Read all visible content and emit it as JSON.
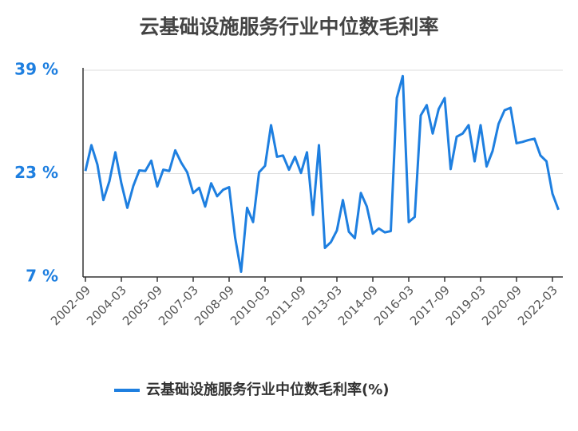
{
  "chart_data": {
    "type": "line",
    "title": "云基础设施服务行业中位数毛利率",
    "categories": [
      "2002-09",
      null,
      null,
      null,
      null,
      null,
      "2004-03",
      null,
      null,
      null,
      null,
      null,
      "2005-09",
      null,
      null,
      null,
      null,
      null,
      "2007-03",
      null,
      null,
      null,
      null,
      null,
      "2008-09",
      null,
      null,
      null,
      null,
      null,
      "2010-03",
      null,
      null,
      null,
      null,
      null,
      "2011-09",
      null,
      null,
      null,
      null,
      null,
      "2013-03",
      null,
      null,
      null,
      null,
      null,
      "2014-09",
      null,
      null,
      null,
      null,
      null,
      "2016-03",
      null,
      null,
      null,
      null,
      null,
      "2017-09",
      null,
      null,
      null,
      null,
      null,
      "2019-03",
      null,
      null,
      null,
      null,
      null,
      "2020-09",
      null,
      null,
      null,
      null,
      null,
      "2022-03",
      null
    ],
    "series": [
      {
        "name": "云基础设施服务行业中位数毛利率(%)",
        "color": "#1e7fe0",
        "values": [
          23.4,
          27.4,
          24.4,
          18.9,
          21.8,
          26.3,
          21.5,
          17.7,
          21.1,
          23.5,
          23.4,
          25.0,
          21.0,
          23.6,
          23.4,
          26.6,
          24.7,
          23.2,
          20.0,
          20.8,
          17.9,
          21.5,
          19.5,
          20.5,
          20.9,
          13.1,
          7.8,
          17.7,
          15.5,
          23.2,
          24.2,
          30.5,
          25.6,
          25.8,
          23.6,
          25.6,
          23.1,
          26.3,
          16.6,
          27.4,
          11.5,
          12.4,
          14.2,
          18.9,
          14.0,
          13.0,
          20.0,
          17.9,
          13.7,
          14.5,
          13.9,
          14.1,
          34.7,
          38.1,
          15.5,
          16.3,
          32.0,
          33.6,
          29.2,
          33.0,
          34.7,
          23.7,
          28.7,
          29.2,
          30.5,
          24.9,
          30.5,
          24.1,
          26.5,
          30.7,
          32.8,
          33.2,
          27.7,
          27.9,
          28.2,
          28.4,
          25.8,
          24.9,
          19.9,
          17.4
        ]
      }
    ],
    "ylim": [
      7,
      39
    ],
    "yticks": [
      {
        "value": 7,
        "label": "7 %"
      },
      {
        "value": 23,
        "label": "23 %"
      },
      {
        "value": 39,
        "label": "39 %"
      }
    ],
    "grid": true,
    "legend": "bottom"
  }
}
